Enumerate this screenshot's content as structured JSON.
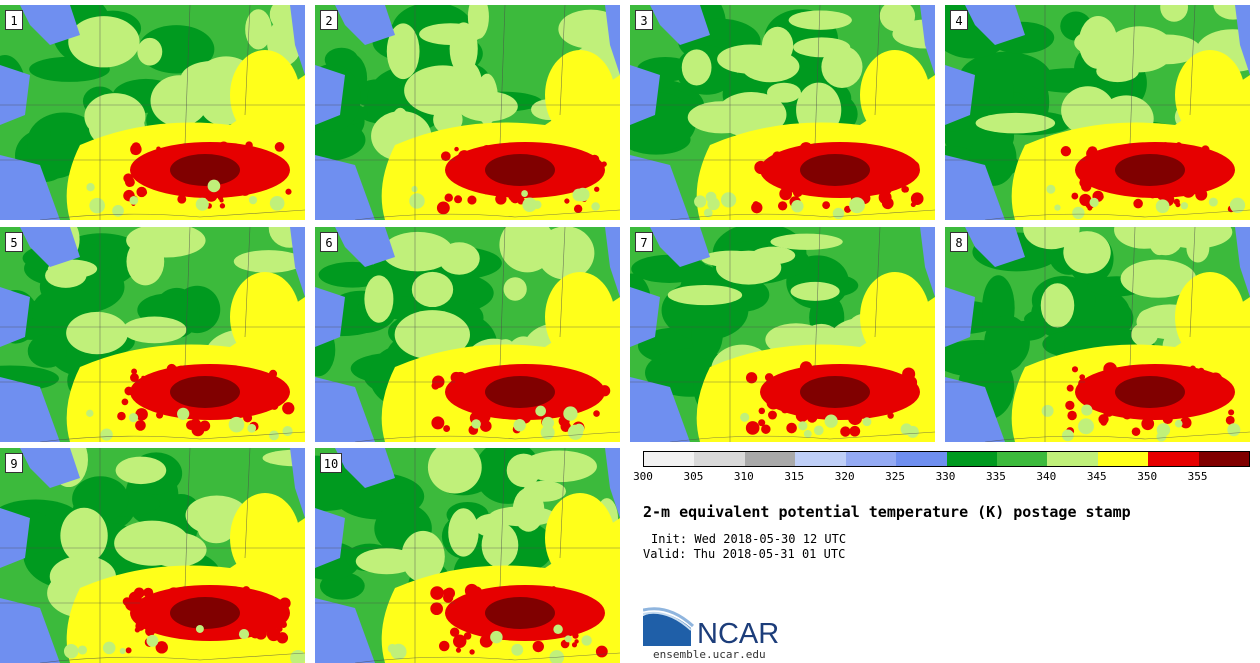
{
  "panels": [
    {
      "label": "1"
    },
    {
      "label": "2"
    },
    {
      "label": "3"
    },
    {
      "label": "4"
    },
    {
      "label": "5"
    },
    {
      "label": "6"
    },
    {
      "label": "7"
    },
    {
      "label": "8"
    },
    {
      "label": "9"
    },
    {
      "label": "10"
    }
  ],
  "legend": {
    "colors": [
      "#f2f2f2",
      "#d9d9d9",
      "#a9a9a9",
      "#bfcff7",
      "#94aaf3",
      "#6f8ff0",
      "#009a1f",
      "#3cba3c",
      "#c0f07a",
      "#ffff1a",
      "#e60000",
      "#800000"
    ],
    "ticks": [
      "300",
      "305",
      "310",
      "315",
      "320",
      "325",
      "330",
      "335",
      "340",
      "345",
      "350",
      "355"
    ]
  },
  "title": "2-m equivalent potential temperature (K) postage stamp",
  "init": "Init: Wed 2018-05-30 12 UTC",
  "valid": "Valid: Thu 2018-05-31 01 UTC",
  "logo_text": "NCAR",
  "url": "ensemble.ucar.edu"
}
